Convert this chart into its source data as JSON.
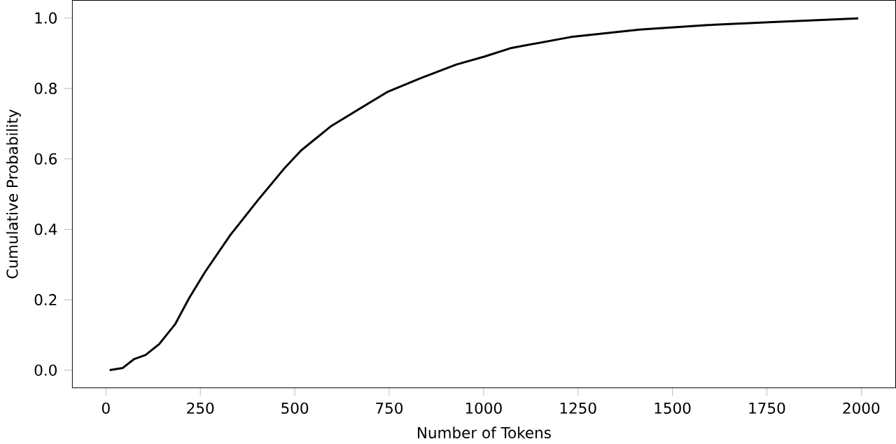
{
  "chart_data": {
    "type": "line",
    "xlabel": "Number of Tokens",
    "ylabel": "Cumulative Probability",
    "x": [
      10,
      44,
      74,
      105,
      141,
      183,
      220,
      262,
      329,
      402,
      474,
      517,
      595,
      662,
      747,
      831,
      928,
      1001,
      1074,
      1231,
      1413,
      1594,
      1776,
      1992
    ],
    "series": [
      {
        "color": "#000000",
        "values": [
          0.0,
          0.006,
          0.031,
          0.043,
          0.074,
          0.13,
          0.204,
          0.278,
          0.383,
          0.482,
          0.575,
          0.624,
          0.692,
          0.736,
          0.791,
          0.828,
          0.868,
          0.89,
          0.915,
          0.946,
          0.967,
          0.98,
          0.989,
          0.999
        ]
      }
    ],
    "xlim": [
      -89,
      2091
    ],
    "ylim": [
      -0.05,
      1.05
    ],
    "xticks": [
      0,
      250,
      500,
      750,
      1000,
      1250,
      1500,
      1750,
      2000
    ],
    "yticks": [
      {
        "value": 0,
        "label": "0.0"
      },
      {
        "value": 0.2,
        "label": "0.2"
      },
      {
        "value": 0.4,
        "label": "0.4"
      },
      {
        "value": 0.6,
        "label": "0.6"
      },
      {
        "value": 0.8,
        "label": "0.8"
      },
      {
        "value": 1,
        "label": "1.0"
      }
    ],
    "grid": false,
    "marker": "none",
    "line_style": "solid"
  }
}
